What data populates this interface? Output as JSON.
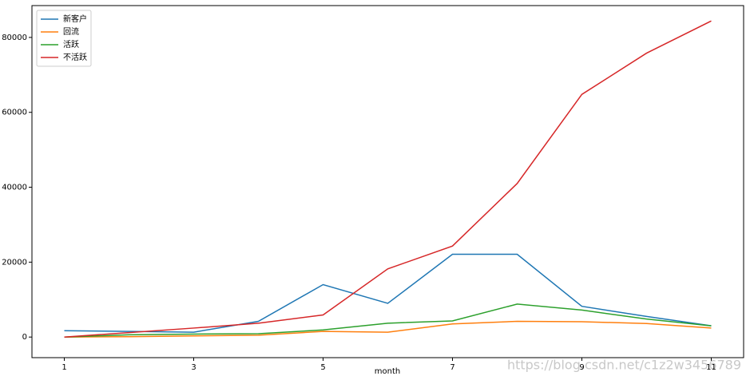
{
  "chart_data": {
    "type": "line",
    "x_label": "month",
    "x": [
      1,
      2,
      3,
      4,
      5,
      6,
      7,
      8,
      9,
      10,
      11
    ],
    "series": [
      {
        "name": "新客户",
        "color": "#1f77b4",
        "values": [
          1700,
          1500,
          1300,
          4200,
          14000,
          9000,
          22100,
          22100,
          8200,
          5500,
          3000
        ]
      },
      {
        "name": "回流",
        "color": "#ff7f0e",
        "values": [
          0,
          100,
          300,
          500,
          1500,
          1300,
          3500,
          4200,
          4100,
          3600,
          2400
        ]
      },
      {
        "name": "活跃",
        "color": "#2ca02c",
        "values": [
          0,
          600,
          800,
          900,
          1900,
          3700,
          4300,
          8800,
          7200,
          4800,
          3000
        ]
      },
      {
        "name": "不活跃",
        "color": "#d62728",
        "values": [
          0,
          1200,
          2400,
          3700,
          5900,
          18200,
          24300,
          41000,
          64800,
          75800,
          84400
        ]
      }
    ],
    "xlim": [
      0.5,
      11.5
    ],
    "xticks": [
      1,
      3,
      5,
      7,
      9,
      11
    ],
    "ylim": [
      -5500,
      88500
    ],
    "yticks": [
      0,
      20000,
      40000,
      60000,
      80000
    ],
    "legend": "upper-left",
    "watermark": "https://blog.csdn.net/c1z2w3456789"
  }
}
